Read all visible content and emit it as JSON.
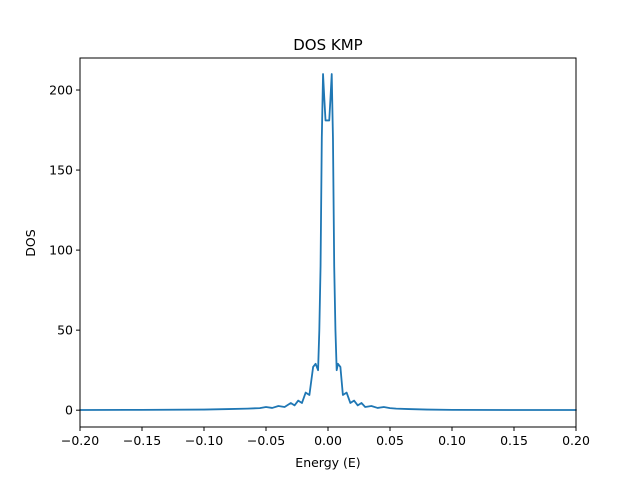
{
  "chart_data": {
    "type": "line",
    "title": "DOS KMP",
    "xlabel": "Energy (E)",
    "ylabel": "DOS",
    "xlim": [
      -0.2,
      0.2
    ],
    "ylim": [
      -10.5,
      220
    ],
    "xticks": [
      -0.2,
      -0.15,
      -0.1,
      -0.05,
      0.0,
      0.05,
      0.1,
      0.15,
      0.2
    ],
    "xtick_labels": [
      "−0.20",
      "−0.15",
      "−0.10",
      "−0.05",
      "0.00",
      "0.05",
      "0.10",
      "0.15",
      "0.20"
    ],
    "yticks": [
      0,
      50,
      100,
      150,
      200
    ],
    "ytick_labels": [
      "0",
      "50",
      "100",
      "150",
      "200"
    ],
    "grid": false,
    "legend": "none",
    "line_color": "#1f77b4",
    "series": [
      {
        "x": [
          -0.2,
          -0.15,
          -0.1,
          -0.08,
          -0.065,
          -0.055,
          -0.05,
          -0.045,
          -0.04,
          -0.035,
          -0.03,
          -0.027,
          -0.024,
          -0.021,
          -0.018,
          -0.015,
          -0.012,
          -0.01,
          -0.008,
          -0.007,
          -0.006,
          -0.005,
          -0.004,
          -0.003,
          -0.002,
          -0.001,
          0.0,
          0.001,
          0.002,
          0.003,
          0.004,
          0.005,
          0.006,
          0.007,
          0.008,
          0.01,
          0.012,
          0.015,
          0.018,
          0.021,
          0.024,
          0.027,
          0.03,
          0.035,
          0.04,
          0.045,
          0.05,
          0.055,
          0.065,
          0.08,
          0.1,
          0.15,
          0.2
        ],
        "y": [
          0.1,
          0.2,
          0.4,
          0.7,
          1.0,
          1.3,
          2.0,
          1.4,
          2.6,
          2.0,
          4.5,
          3.0,
          6.0,
          4.5,
          11.0,
          9.5,
          27.0,
          29.0,
          25.0,
          50.0,
          90.0,
          170.0,
          210.0,
          195.0,
          181.0,
          181.0,
          181.0,
          181.0,
          195.0,
          210.0,
          170.0,
          90.0,
          50.0,
          25.0,
          29.0,
          27.0,
          9.5,
          11.0,
          4.5,
          6.0,
          3.0,
          4.5,
          2.0,
          2.6,
          1.4,
          2.0,
          1.3,
          1.0,
          0.7,
          0.4,
          0.2,
          0.1,
          0.1
        ]
      }
    ]
  }
}
